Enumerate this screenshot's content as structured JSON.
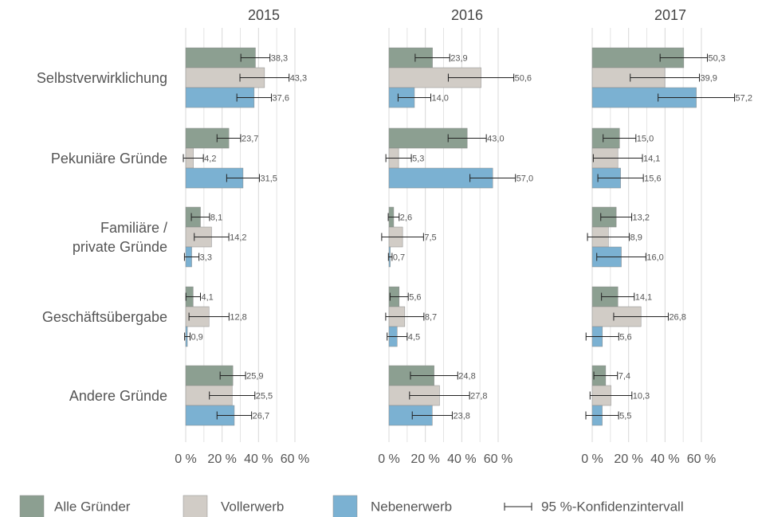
{
  "chart_data": {
    "type": "bar",
    "orientation": "horizontal",
    "categories": [
      "Selbstverwirklichung",
      "Pekuniäre Gründe",
      "Familiäre /\nprivate Gründe",
      "Geschäftsübergabe",
      "Andere Gründe"
    ],
    "series": [
      {
        "name": "Alle Gründer",
        "color": "#8c9f91"
      },
      {
        "name": "Vollerwerb",
        "color": "#d1ccc6"
      },
      {
        "name": "Nebenerwerb",
        "color": "#7bb1d2"
      }
    ],
    "error_bar_label": "95 %-Konfidenzintervall",
    "xlim": [
      0,
      60
    ],
    "xticks": [
      {
        "value": 0,
        "label": "0 %"
      },
      {
        "value": 20,
        "label": "20 %"
      },
      {
        "value": 40,
        "label": "40 %"
      },
      {
        "value": 60,
        "label": "60 %"
      }
    ],
    "x_minor_grid": [
      10,
      30,
      50
    ],
    "grid": true,
    "panels": [
      {
        "title": "2015",
        "series": [
          {
            "values": [
              38.3,
              23.7,
              8.1,
              4.1,
              25.9
            ],
            "value_labels": [
              "38,3",
              "23,7",
              "8,1",
              "4,1",
              "25,9"
            ],
            "errors": [
              8,
              6.5,
              5,
              4,
              7
            ]
          },
          {
            "values": [
              43.3,
              4.2,
              14.2,
              12.8,
              25.5
            ],
            "value_labels": [
              "43,3",
              "4,2",
              "14,2",
              "12,8",
              "25,5"
            ],
            "errors": [
              13.5,
              5.5,
              9.5,
              11,
              12.5
            ]
          },
          {
            "values": [
              37.6,
              31.5,
              3.3,
              0.9,
              26.7
            ],
            "value_labels": [
              "37,6",
              "31,5",
              "3,3",
              "0,9",
              "26,7"
            ],
            "errors": [
              9.5,
              9,
              4,
              1.5,
              9.5
            ]
          }
        ]
      },
      {
        "title": "2016",
        "series": [
          {
            "values": [
              23.9,
              43.0,
              2.6,
              5.6,
              24.8
            ],
            "value_labels": [
              "23,9",
              "43,0",
              "2,6",
              "5,6",
              "24,8"
            ],
            "errors": [
              9.5,
              10.5,
              3,
              5,
              13
            ]
          },
          {
            "values": [
              50.6,
              5.3,
              7.5,
              8.7,
              27.8
            ],
            "value_labels": [
              "50,6",
              "5,3",
              "7,5",
              "8,7",
              "27,8"
            ],
            "errors": [
              18,
              7,
              11.5,
              10.5,
              16.5
            ]
          },
          {
            "values": [
              14.0,
              57.0,
              0.7,
              4.5,
              23.8
            ],
            "value_labels": [
              "14,0",
              "57,0",
              "0,7",
              "4,5",
              "23,8"
            ],
            "errors": [
              9,
              12.5,
              1,
              5.5,
              11
            ]
          }
        ]
      },
      {
        "title": "2017",
        "series": [
          {
            "values": [
              50.3,
              15.0,
              13.2,
              14.1,
              7.4
            ],
            "value_labels": [
              "50,3",
              "15,0",
              "13,2",
              "14,1",
              "7,4"
            ],
            "errors": [
              13,
              9,
              8.5,
              9,
              6.5
            ]
          },
          {
            "values": [
              39.9,
              14.1,
              8.9,
              26.8,
              10.3
            ],
            "value_labels": [
              "39,9",
              "14,1",
              "8,9",
              "26,8",
              "10,3"
            ],
            "errors": [
              19,
              13.5,
              11.5,
              15,
              11.5
            ]
          },
          {
            "values": [
              57.2,
              15.6,
              16.0,
              5.6,
              5.5
            ],
            "value_labels": [
              "57,2",
              "15,6",
              "16,0",
              "5,6",
              "5,5"
            ],
            "errors": [
              21,
              12.5,
              13.5,
              9,
              9
            ]
          }
        ]
      }
    ]
  }
}
